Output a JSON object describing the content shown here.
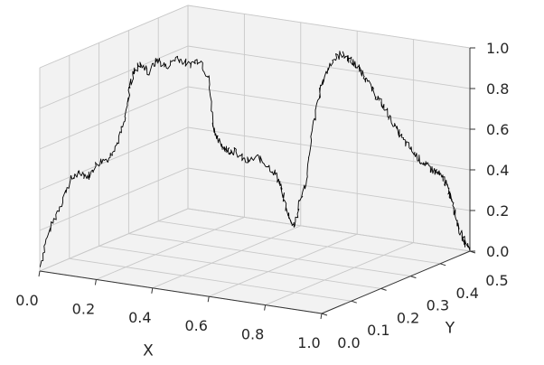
{
  "chart_data": {
    "type": "line",
    "projection": "3d",
    "title": "",
    "xlabel": "X",
    "ylabel": "Y",
    "zlabel": "",
    "xlim": [
      0.0,
      1.0
    ],
    "ylim": [
      0.0,
      0.5
    ],
    "zlim": [
      0.0,
      1.0
    ],
    "grid": true,
    "pane_color": "#f2f2f2",
    "grid_color": "#c8c8c8",
    "line_color": "#000000",
    "x_ticks": [
      "0.0",
      "0.2",
      "0.4",
      "0.6",
      "0.8",
      "1.0"
    ],
    "y_ticks": [
      "0.0",
      "0.1",
      "0.2",
      "0.3",
      "0.4",
      "0.5"
    ],
    "z_ticks": [
      "0.0",
      "0.2",
      "0.4",
      "0.6",
      "0.8",
      "1.0"
    ],
    "series": [
      {
        "x": [
          0.0,
          0.02,
          0.05,
          0.08,
          0.1,
          0.12,
          0.14,
          0.17,
          0.19,
          0.21,
          0.22,
          0.23,
          0.24,
          0.26,
          0.28,
          0.3,
          0.33,
          0.36,
          0.39,
          0.41,
          0.42,
          0.43,
          0.44,
          0.45,
          0.46,
          0.49,
          0.52,
          0.55,
          0.57,
          0.58,
          0.6,
          0.61,
          0.62,
          0.63,
          0.64,
          0.65,
          0.66,
          0.68,
          0.7,
          0.71,
          0.72,
          0.73,
          0.74,
          0.76,
          0.78,
          0.8,
          0.82,
          0.84,
          0.86,
          0.88,
          0.9,
          0.92,
          0.93,
          0.94,
          0.95,
          0.96,
          0.97,
          0.98,
          0.99,
          1.0
        ],
        "y": [
          0.0,
          0.01,
          0.02,
          0.03,
          0.04,
          0.05,
          0.06,
          0.07,
          0.08,
          0.09,
          0.095,
          0.1,
          0.11,
          0.12,
          0.13,
          0.14,
          0.15,
          0.16,
          0.17,
          0.18,
          0.185,
          0.19,
          0.2,
          0.21,
          0.22,
          0.23,
          0.24,
          0.25,
          0.26,
          0.265,
          0.27,
          0.28,
          0.29,
          0.3,
          0.31,
          0.32,
          0.33,
          0.34,
          0.35,
          0.36,
          0.37,
          0.38,
          0.39,
          0.4,
          0.405,
          0.41,
          0.42,
          0.43,
          0.44,
          0.45,
          0.455,
          0.46,
          0.465,
          0.47,
          0.475,
          0.48,
          0.485,
          0.49,
          0.495,
          0.5
        ],
        "z": [
          0.02,
          0.18,
          0.32,
          0.45,
          0.48,
          0.46,
          0.52,
          0.55,
          0.62,
          0.75,
          0.9,
          0.97,
          1.0,
          0.96,
          1.02,
          0.98,
          1.03,
          0.99,
          1.02,
          0.92,
          0.7,
          0.62,
          0.58,
          0.56,
          0.55,
          0.5,
          0.52,
          0.48,
          0.42,
          0.35,
          0.22,
          0.18,
          0.3,
          0.4,
          0.62,
          0.78,
          0.88,
          0.97,
          1.0,
          0.98,
          0.95,
          0.92,
          0.88,
          0.8,
          0.75,
          0.7,
          0.62,
          0.55,
          0.5,
          0.45,
          0.42,
          0.4,
          0.38,
          0.36,
          0.3,
          0.25,
          0.15,
          0.08,
          0.04,
          0.02
        ]
      }
    ]
  }
}
